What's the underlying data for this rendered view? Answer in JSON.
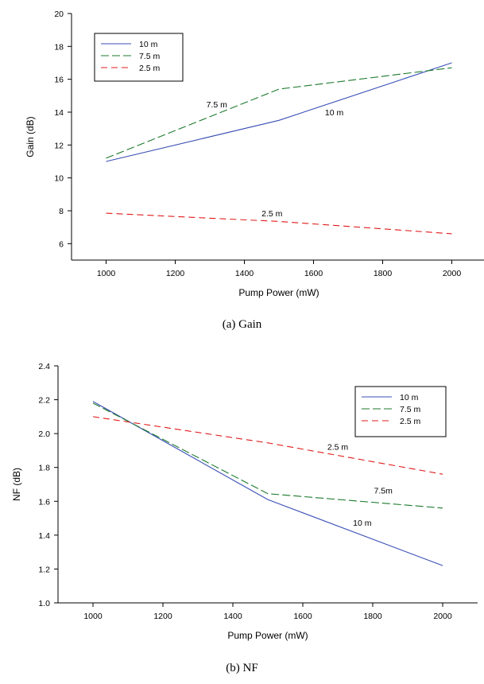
{
  "captions": [
    "(a) Gain",
    "(b) NF"
  ],
  "chart_data": [
    {
      "type": "line",
      "title": "",
      "xlabel": "Pump Power (mW)",
      "ylabel": "Gain (dB)",
      "xlim": [
        900,
        2100
      ],
      "ylim": [
        5,
        20
      ],
      "xticks": [
        1000,
        1200,
        1400,
        1600,
        1800,
        2000
      ],
      "yticks": [
        6,
        8,
        10,
        12,
        14,
        16,
        18,
        20
      ],
      "x": [
        1000,
        1500,
        2000
      ],
      "series": [
        {
          "name": "10 m",
          "values": [
            11.0,
            13.5,
            17.0
          ],
          "color": "#3a4fb5",
          "dash": "none"
        },
        {
          "name": "7.5 m",
          "values": [
            11.2,
            15.4,
            16.7
          ],
          "color": "#1b7a2b",
          "dash": "10,4"
        },
        {
          "name": "2.5 m",
          "values": [
            7.85,
            7.35,
            6.6
          ],
          "color": "#e01b1b",
          "dash": "8,5"
        }
      ],
      "legend": "top-left",
      "annotations": [
        {
          "text": "7.5 m",
          "x": 1320,
          "y": 14.3
        },
        {
          "text": "10 m",
          "x": 1660,
          "y": 13.8
        },
        {
          "text": "2.5 m",
          "x": 1480,
          "y": 7.65
        }
      ]
    },
    {
      "type": "line",
      "title": "",
      "xlabel": "Pump Power (mW)",
      "ylabel": "NF (dB)",
      "xlim": [
        900,
        2100
      ],
      "ylim": [
        1.0,
        2.4
      ],
      "xticks": [
        1000,
        1200,
        1400,
        1600,
        1800,
        2000
      ],
      "yticks": [
        1.0,
        1.2,
        1.4,
        1.6,
        1.8,
        2.0,
        2.2,
        2.4
      ],
      "x": [
        1000,
        1500,
        2000
      ],
      "series": [
        {
          "name": "10 m",
          "values": [
            2.19,
            1.61,
            1.22
          ],
          "color": "#3a4fb5",
          "dash": "none"
        },
        {
          "name": "7.5 m",
          "values": [
            2.18,
            1.645,
            1.56
          ],
          "color": "#1b7a2b",
          "dash": "10,4"
        },
        {
          "name": "2.5 m",
          "values": [
            2.1,
            1.945,
            1.76
          ],
          "color": "#e01b1b",
          "dash": "8,5"
        }
      ],
      "legend": "top-right",
      "annotations": [
        {
          "text": "2.5 m",
          "x": 1700,
          "y": 1.905
        },
        {
          "text": "7.5m",
          "x": 1830,
          "y": 1.645
        },
        {
          "text": "10 m",
          "x": 1770,
          "y": 1.455
        }
      ]
    }
  ]
}
